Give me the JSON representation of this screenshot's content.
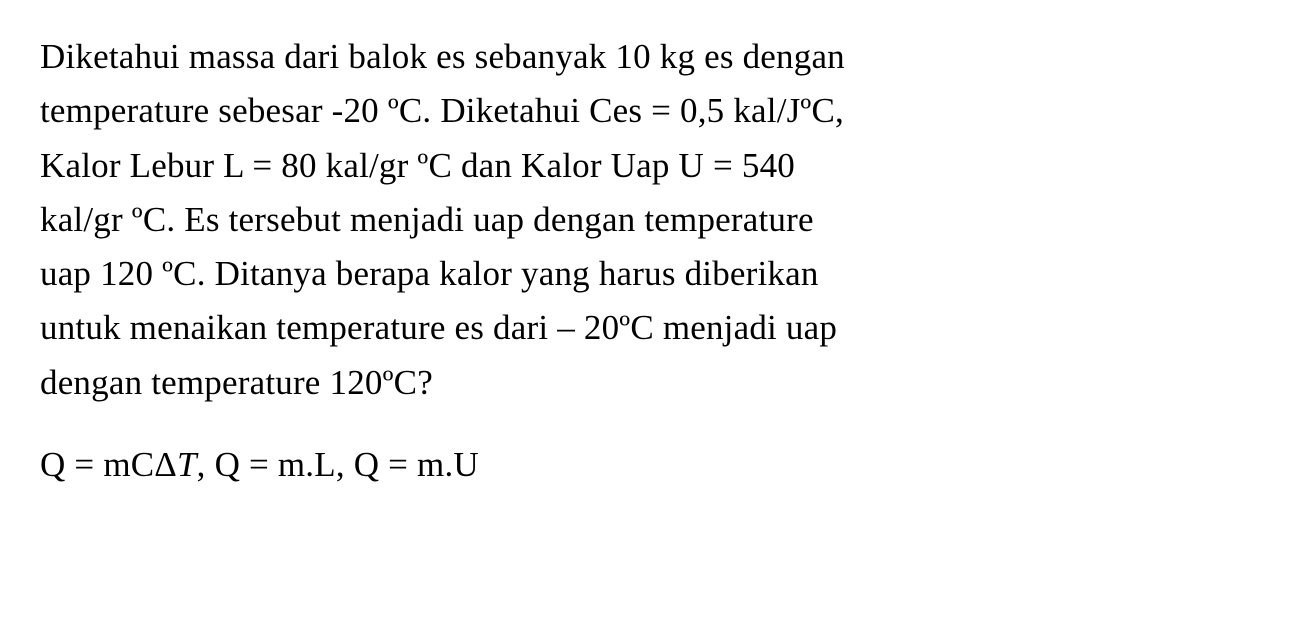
{
  "problem": {
    "text_parts": {
      "p1_l1": "Diketahui massa dari balok es sebanyak 10 kg es dengan",
      "p1_l2": "temperature sebesar -20 ºC. Diketahui Ces = 0,5 kal/JºC,",
      "p1_l3": "Kalor Lebur L = 80 kal/gr ºC dan Kalor Uap U = 540",
      "p1_l4": "kal/gr ºC. Es tersebut menjadi uap dengan temperature",
      "p1_l5": "uap 120 ºC. Ditanya berapa kalor yang harus diberikan",
      "p1_l6": "untuk menaikan temperature es dari – 20ºC menjadi uap",
      "p1_l7": "dengan temperature 120ºC?"
    },
    "formula": {
      "f1": "Q = mCΔ",
      "f1_italic": "T",
      "f2": ", Q = m.L, Q = m.U"
    }
  },
  "styling": {
    "background_color": "#ffffff",
    "text_color": "#000000",
    "font_family": "Times New Roman",
    "font_size_pt": 26,
    "line_height": 1.55
  }
}
